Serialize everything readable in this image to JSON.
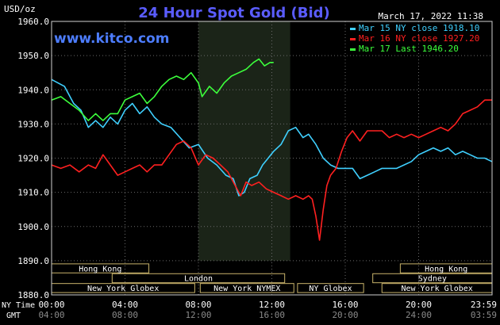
{
  "chart_data": {
    "type": "line",
    "title": "24 Hour Spot Gold (Bid)",
    "ylabel": "USD/oz",
    "watermark": "www.kitco.com",
    "timestamp": "March 17, 2022 11:38",
    "ylim": [
      1880,
      1960
    ],
    "yticks": [
      "1960.0",
      "1950.0",
      "1940.0",
      "1930.0",
      "1920.0",
      "1910.0",
      "1900.0",
      "1890.0",
      "1880.0"
    ],
    "xlim": [
      0,
      24
    ],
    "xticks_ny": [
      "00:00",
      "04:00",
      "08:00",
      "12:00",
      "16:00",
      "20:00",
      "23:59"
    ],
    "xticks_gmt": [
      "04:00",
      "08:00",
      "12:00",
      "16:00",
      "20:00",
      "24:00",
      "03:59"
    ],
    "row_label_ny": "NY Time",
    "row_label_gmt": "GMT",
    "shaded_range": [
      8.0,
      13.0
    ],
    "legend": [
      {
        "label": "Mar 15 NY close 1918.10",
        "color": "#3fd0ff"
      },
      {
        "label": "Mar 16 NY close 1927.20",
        "color": "#ff2020"
      },
      {
        "label": "Mar 17 Last 1946.20",
        "color": "#3cff3c"
      }
    ],
    "series": [
      {
        "name": "Mar 15 NY close 1918.10",
        "color": "#3fd0ff",
        "points": [
          [
            0,
            1943
          ],
          [
            0.7,
            1941
          ],
          [
            1.2,
            1936
          ],
          [
            1.6,
            1934
          ],
          [
            2.0,
            1929
          ],
          [
            2.4,
            1931
          ],
          [
            2.8,
            1929
          ],
          [
            3.2,
            1932
          ],
          [
            3.6,
            1930
          ],
          [
            4.0,
            1934
          ],
          [
            4.4,
            1936
          ],
          [
            4.8,
            1933
          ],
          [
            5.2,
            1935
          ],
          [
            5.6,
            1932
          ],
          [
            6.0,
            1930
          ],
          [
            6.5,
            1929
          ],
          [
            7.0,
            1926
          ],
          [
            7.5,
            1923
          ],
          [
            8.0,
            1924
          ],
          [
            8.5,
            1920
          ],
          [
            9.0,
            1918
          ],
          [
            9.5,
            1915
          ],
          [
            9.9,
            1914
          ],
          [
            10.2,
            1909
          ],
          [
            10.5,
            1910
          ],
          [
            10.8,
            1914
          ],
          [
            11.2,
            1915
          ],
          [
            11.5,
            1918
          ],
          [
            11.8,
            1920
          ],
          [
            12.1,
            1922
          ],
          [
            12.5,
            1924
          ],
          [
            12.9,
            1928
          ],
          [
            13.3,
            1929
          ],
          [
            13.7,
            1926
          ],
          [
            14.0,
            1927
          ],
          [
            14.4,
            1924
          ],
          [
            14.8,
            1920
          ],
          [
            15.2,
            1918
          ],
          [
            15.6,
            1917
          ],
          [
            16.0,
            1917
          ],
          [
            16.4,
            1917
          ],
          [
            16.8,
            1914
          ],
          [
            17.2,
            1915
          ],
          [
            17.6,
            1916
          ],
          [
            18.0,
            1917
          ],
          [
            18.4,
            1917
          ],
          [
            18.8,
            1917
          ],
          [
            19.2,
            1918
          ],
          [
            19.6,
            1919
          ],
          [
            20.0,
            1921
          ],
          [
            20.4,
            1922
          ],
          [
            20.8,
            1923
          ],
          [
            21.2,
            1922
          ],
          [
            21.6,
            1923
          ],
          [
            22.0,
            1921
          ],
          [
            22.4,
            1922
          ],
          [
            22.8,
            1921
          ],
          [
            23.2,
            1920
          ],
          [
            23.6,
            1920
          ],
          [
            23.99,
            1919
          ]
        ]
      },
      {
        "name": "Mar 16 NY close 1927.20",
        "color": "#ff2020",
        "points": [
          [
            0,
            1918
          ],
          [
            0.5,
            1917
          ],
          [
            1.0,
            1918
          ],
          [
            1.5,
            1916
          ],
          [
            2.0,
            1918
          ],
          [
            2.4,
            1917
          ],
          [
            2.8,
            1921
          ],
          [
            3.2,
            1918
          ],
          [
            3.6,
            1915
          ],
          [
            4.0,
            1916
          ],
          [
            4.4,
            1917
          ],
          [
            4.8,
            1918
          ],
          [
            5.2,
            1916
          ],
          [
            5.6,
            1918
          ],
          [
            6.0,
            1918
          ],
          [
            6.4,
            1921
          ],
          [
            6.8,
            1924
          ],
          [
            7.2,
            1925
          ],
          [
            7.6,
            1923
          ],
          [
            8.0,
            1918
          ],
          [
            8.4,
            1921
          ],
          [
            8.8,
            1920
          ],
          [
            9.2,
            1918
          ],
          [
            9.6,
            1916
          ],
          [
            10.0,
            1912
          ],
          [
            10.3,
            1909
          ],
          [
            10.6,
            1913
          ],
          [
            10.9,
            1912
          ],
          [
            11.3,
            1913
          ],
          [
            11.7,
            1911
          ],
          [
            12.1,
            1910
          ],
          [
            12.5,
            1909
          ],
          [
            12.9,
            1908
          ],
          [
            13.3,
            1909
          ],
          [
            13.7,
            1908
          ],
          [
            14.0,
            1909
          ],
          [
            14.2,
            1908
          ],
          [
            14.4,
            1903
          ],
          [
            14.6,
            1896
          ],
          [
            14.8,
            1905
          ],
          [
            15.0,
            1912
          ],
          [
            15.2,
            1915
          ],
          [
            15.5,
            1917
          ],
          [
            15.8,
            1922
          ],
          [
            16.1,
            1926
          ],
          [
            16.4,
            1928
          ],
          [
            16.8,
            1925
          ],
          [
            17.2,
            1928
          ],
          [
            17.6,
            1928
          ],
          [
            18.0,
            1928
          ],
          [
            18.4,
            1926
          ],
          [
            18.8,
            1927
          ],
          [
            19.2,
            1926
          ],
          [
            19.6,
            1927
          ],
          [
            20.0,
            1926
          ],
          [
            20.4,
            1927
          ],
          [
            20.8,
            1928
          ],
          [
            21.2,
            1929
          ],
          [
            21.6,
            1928
          ],
          [
            22.0,
            1930
          ],
          [
            22.4,
            1933
          ],
          [
            22.8,
            1934
          ],
          [
            23.2,
            1935
          ],
          [
            23.6,
            1937
          ],
          [
            23.99,
            1937
          ]
        ]
      },
      {
        "name": "Mar 17 Last 1946.20",
        "color": "#3cff3c",
        "points": [
          [
            0,
            1937
          ],
          [
            0.5,
            1938
          ],
          [
            1.0,
            1936
          ],
          [
            1.5,
            1934
          ],
          [
            2.0,
            1931
          ],
          [
            2.4,
            1933
          ],
          [
            2.8,
            1931
          ],
          [
            3.2,
            1933
          ],
          [
            3.6,
            1933
          ],
          [
            4.0,
            1937
          ],
          [
            4.4,
            1938
          ],
          [
            4.8,
            1939
          ],
          [
            5.2,
            1936
          ],
          [
            5.6,
            1938
          ],
          [
            6.0,
            1941
          ],
          [
            6.4,
            1943
          ],
          [
            6.8,
            1944
          ],
          [
            7.2,
            1943
          ],
          [
            7.6,
            1945
          ],
          [
            8.0,
            1942
          ],
          [
            8.2,
            1938
          ],
          [
            8.6,
            1941
          ],
          [
            9.0,
            1939
          ],
          [
            9.4,
            1942
          ],
          [
            9.8,
            1944
          ],
          [
            10.2,
            1945
          ],
          [
            10.6,
            1946
          ],
          [
            11.0,
            1948
          ],
          [
            11.3,
            1949
          ],
          [
            11.6,
            1947
          ],
          [
            11.9,
            1948
          ],
          [
            12.1,
            1948
          ]
        ]
      }
    ],
    "sessions": [
      {
        "label": "Hong Kong",
        "row": 0,
        "start": 0.0,
        "end": 5.3
      },
      {
        "label": "London",
        "row": 1,
        "start": 3.3,
        "end": 12.7
      },
      {
        "label": "New York Globex",
        "row": 2,
        "start": 0.0,
        "end": 7.8
      },
      {
        "label": "New York NYMEX",
        "row": 2,
        "start": 8.1,
        "end": 13.2
      },
      {
        "label": "NY Globex",
        "row": 2,
        "start": 13.4,
        "end": 17.0
      },
      {
        "label": "Hong Kong",
        "row": 0,
        "start": 19.0,
        "end": 24.0
      },
      {
        "label": "Sydney",
        "row": 1,
        "start": 17.5,
        "end": 24.0
      },
      {
        "label": "New York Globex",
        "row": 2,
        "start": 18.0,
        "end": 24.0
      }
    ]
  }
}
